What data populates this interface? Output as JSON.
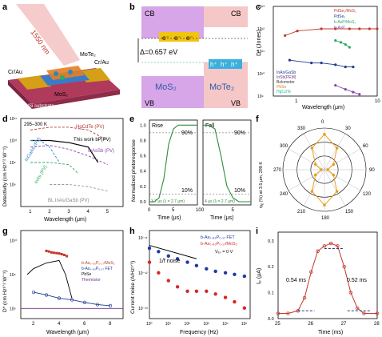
{
  "panels": {
    "a": {
      "label": "a",
      "laser_text": "1550 nm",
      "electrode_left": "Cr/Au",
      "electrode_right": "Cr/Au",
      "top_layer": "MoTe₂",
      "bottom_layer": "MoS₂",
      "substrate": "SiO₂/Si substrate"
    },
    "b": {
      "label": "b",
      "cb_left": "CB",
      "cb_right": "CB",
      "vb_left": "VB",
      "vb_right": "VB",
      "delta": "Δ=0.657 eV",
      "mos2": "MoS₂",
      "mote2": "MoTe₂",
      "electron_marks": [
        "e⁻",
        "e⁻",
        "e⁻"
      ],
      "hole_marks": [
        "h⁺",
        "h⁺",
        "h⁺"
      ]
    },
    "c": {
      "label": "c",
      "xlabel": "Wavelength (μm)",
      "ylabel": "D* (Jones)",
      "legend": [
        "PdSe₂/MoS₂",
        "InAs/GaSb",
        "InSb(PEM)",
        "Bolometer",
        "PbSe",
        "HgCdTe",
        "PdSe₂",
        "b-AsP/MoS₂",
        "b-AsP"
      ],
      "colors": {
        "pdse2_mos2": "#c0392b",
        "inas_gasb": "#1f3a93",
        "insb": "#6c3483",
        "bolometer": "#333333",
        "pbse": "#e67e22",
        "hgcdte": "#1abc9c",
        "pdse2": "#2e86c1",
        "basp_mos2": "#27ae60",
        "basp": "#8e44ad"
      }
    },
    "d": {
      "label": "d",
      "temp_range": "295–300 K",
      "xlabel": "Wavelength (μm)",
      "ylabel": "Detectivity (cm Hz¹ᐟ² W⁻¹)",
      "curve_labels": [
        "HgCdTe (PV)",
        "This work bP(PV)",
        "InAsSb (PV)",
        "InGaAs (PV)",
        "InAs (PV)",
        "BL InAs/GaSb (PV)"
      ],
      "colors": {
        "hgcdte": "#b03a2e",
        "bp": "#000000",
        "inassb": "#8e44ad",
        "ingaas": "#2e86c1",
        "inas": "#27ae60",
        "inas_gasb": "#999999"
      }
    },
    "e": {
      "label": "e",
      "ylabel": "Normalized photoresponse",
      "xlabel_left": "Time (μs)",
      "xlabel_right": "Time (μs)",
      "rise_label": "Rise",
      "fall_label": "Fall",
      "rise_time": "3.7 μs (λ = 2.7 μm)",
      "fall_time": "4 μs (λ = 2.7 μm)",
      "mark90": "90%",
      "mark10": "10%",
      "mark90b": "90%",
      "mark10b": "10%",
      "colors": {
        "curve": "#2e8b3a",
        "ref": "#8e44ad"
      }
    },
    "f": {
      "label": "f",
      "ylabel": "ηᵢᵨ (%) at 3.5 μm, 298 K",
      "angle_labels": [
        "0",
        "30",
        "60",
        "90",
        "120",
        "150",
        "180",
        "210",
        "240",
        "270",
        "300",
        "330"
      ],
      "color": "#e8a020"
    },
    "g": {
      "label": "g",
      "xlabel": "Wavelength (μm)",
      "ylabel": "D* (cm Hz¹ᐟ² W⁻¹)",
      "legend": [
        "b-As₀.₈₃P₀.₁₇/MoS₂",
        "b-As₀.₈₃P₀.₁₇ FET",
        "PbSe",
        "Thermistor"
      ],
      "colors": {
        "heterostructure": "#c0392b",
        "fet": "#1f3a93",
        "pbse": "#000000",
        "thermistor": "#6c3483"
      }
    },
    "h": {
      "label": "h",
      "xlabel": "Frequency (Hz)",
      "ylabel": "Current noise (A/Hz¹ᐟ²)",
      "legend": [
        "b-As₀.₈₃P₀.₁₇ FET",
        "b-As₀.₈₃P₀.₁₇/MoS₂"
      ],
      "vds": "Vₑₛ = 0 V",
      "noise_label": "1/f noise",
      "colors": {
        "fet": "#1f3aa3",
        "hetero": "#d62728"
      }
    },
    "i": {
      "label": "i",
      "xlabel": "Time (ms)",
      "ylabel": "Iₚ (μA)",
      "rise": "0.54 ms",
      "fall": "0.52 ms",
      "color": "#c0392b"
    }
  },
  "chart_data": [
    {
      "panel": "c",
      "type": "line",
      "xlabel": "Wavelength (μm)",
      "ylabel": "D* (Jones)",
      "x_scale": "log",
      "y_scale": "log",
      "xlim": [
        0.5,
        10
      ],
      "ylim": [
        1000000000,
        10000000000000
      ],
      "x_ticks": [
        1,
        10
      ],
      "y_tick_exponents": [
        9,
        10,
        11,
        12,
        13
      ],
      "series": [
        {
          "name": "PdSe₂/MoS₂",
          "color": "#c0392b",
          "x": [
            0.7,
            1,
            2,
            3,
            4.5,
            6,
            8,
            10
          ],
          "y": [
            500000000000.0,
            800000000000.0,
            1000000000000.0,
            1000000000000.0,
            1000000000000.0,
            1000000000000.0,
            1000000000000.0,
            1000000000000.0
          ]
        },
        {
          "name": "InAs/GaSb",
          "color": "#1f3a93",
          "x": [
            0.8,
            1.5,
            2,
            3,
            4,
            5
          ],
          "y": [
            40000000000.0,
            30000000000.0,
            30000000000.0,
            25000000000.0,
            20000000000.0,
            20000000000.0
          ]
        },
        {
          "name": "b-AsP/MoS₂",
          "color": "#27ae60",
          "x": [
            3,
            3.5,
            4,
            4.5
          ],
          "y": [
            300000000000.0,
            250000000000.0,
            200000000000.0,
            150000000000.0
          ]
        },
        {
          "name": "b-AsP",
          "color": "#8e44ad",
          "x": [
            3,
            4,
            5,
            6
          ],
          "y": [
            3000000000.0,
            2000000000.0,
            1500000000.0,
            1200000000.0
          ]
        }
      ]
    },
    {
      "panel": "d",
      "type": "line",
      "xlabel": "Wavelength (μm)",
      "ylabel": "Detectivity (cm Hz¹ᐟ² W⁻¹)",
      "x_ticks": [
        1,
        2,
        3,
        4,
        5
      ],
      "y_tick_exponents": [
        8,
        9,
        10,
        11
      ],
      "y_scale": "log",
      "series": [
        {
          "name": "HgCdTe (PV)",
          "color": "#b03a2e",
          "x": [
            1,
            2,
            3,
            4,
            5
          ],
          "y": [
            30000000000.0,
            40000000000.0,
            40000000000.0,
            30000000000.0,
            10000000000.0
          ]
        },
        {
          "name": "This work bP(PV)",
          "color": "#000000",
          "x": [
            1,
            2,
            3,
            4,
            4.5
          ],
          "y": [
            10000000000.0,
            10000000000.0,
            8000000000.0,
            5000000000.0,
            1000000000.0
          ]
        },
        {
          "name": "InAsSb (PV)",
          "color": "#8e44ad",
          "x": [
            1,
            2,
            3,
            4,
            5
          ],
          "y": [
            5000000000.0,
            6000000000.0,
            4000000000.0,
            2000000000.0,
            800000000.0
          ]
        },
        {
          "name": "InGaAs (PV)",
          "color": "#2e86c1",
          "x": [
            1,
            1.5,
            2,
            2.5
          ],
          "y": [
            10000000000.0,
            10000000000.0,
            5000000000.0,
            1000000000.0
          ]
        },
        {
          "name": "InAs (PV)",
          "color": "#27ae60",
          "x": [
            1,
            2,
            3,
            3.5
          ],
          "y": [
            1000000000.0,
            1000000000.0,
            800000000.0,
            300000000.0
          ]
        },
        {
          "name": "BL InAs/GaSb (PV)",
          "color": "#999999",
          "x": [
            2,
            3,
            4,
            5
          ],
          "y": [
            100000000.0,
            100000000.0,
            80000000.0,
            50000000.0
          ]
        }
      ]
    },
    {
      "panel": "e",
      "type": "line",
      "ylabel": "Normalized photoresponse",
      "xlabel": "Time (μs)",
      "y_ticks": [
        0,
        0.2,
        0.4,
        0.6,
        0.8,
        1.0
      ],
      "x_ticks_left": [
        0,
        5,
        10
      ],
      "x_ticks_right": [
        0,
        5
      ],
      "series": [
        {
          "name": "Rise",
          "x": [
            0,
            1,
            2,
            3,
            4,
            5,
            6,
            7,
            8,
            10
          ],
          "y": [
            0,
            0,
            0.05,
            0.3,
            0.75,
            0.95,
            1,
            1,
            1,
            1
          ]
        },
        {
          "name": "Fall",
          "x": [
            0,
            1,
            2,
            3,
            4,
            5,
            6,
            7,
            8
          ],
          "y": [
            1,
            1,
            0.95,
            0.6,
            0.2,
            0.05,
            0,
            0,
            0
          ]
        }
      ]
    },
    {
      "panel": "f",
      "type": "polar",
      "ylabel": "ηᵢᵨ (%) at 3.5 μm, 298 K",
      "angles": [
        0,
        30,
        60,
        90,
        120,
        150,
        180,
        210,
        240,
        270,
        300,
        330
      ],
      "values": [
        0.85,
        0.6,
        0.25,
        0.08,
        0.25,
        0.6,
        0.85,
        0.6,
        0.25,
        0.08,
        0.25,
        0.6
      ]
    },
    {
      "panel": "g",
      "type": "line",
      "xlabel": "Wavelength (μm)",
      "ylabel": "D* (cm Hz¹ᐟ² W⁻¹)",
      "y_scale": "log",
      "x_ticks": [
        2,
        4,
        6,
        8
      ],
      "y_tick_exponents": [
        8,
        9,
        10
      ],
      "series": [
        {
          "name": "b-As₀.₈₃P₀.₁₇/MoS₂",
          "color": "#c0392b",
          "x": [
            3,
            3.2,
            3.4,
            3.6,
            3.8,
            4,
            4.2,
            4.4,
            4.6
          ],
          "y": [
            5000000000.0,
            4800000000.0,
            4500000000.0,
            4400000000.0,
            4300000000.0,
            4200000000.0,
            4000000000.0,
            3800000000.0,
            3500000000.0
          ]
        },
        {
          "name": "b-As₀.₈₃P₀.₁₇ FET",
          "color": "#1f3a93",
          "x": [
            2,
            3,
            4,
            5,
            6,
            7,
            8
          ],
          "y": [
            300000000.0,
            250000000.0,
            200000000.0,
            180000000.0,
            150000000.0,
            130000000.0,
            120000000.0
          ]
        },
        {
          "name": "PbSe",
          "color": "#000000",
          "x": [
            1.5,
            2,
            3,
            4,
            4.5,
            5
          ],
          "y": [
            1000000000.0,
            1500000000.0,
            2200000000.0,
            2600000000.0,
            1000000000.0,
            200000000.0
          ]
        },
        {
          "name": "Thermistor",
          "color": "#6c3483",
          "x": [
            1,
            2,
            4,
            6,
            8,
            9
          ],
          "y": [
            100000000.0,
            100000000.0,
            100000000.0,
            100000000.0,
            100000000.0,
            100000000.0
          ]
        }
      ]
    },
    {
      "panel": "h",
      "type": "scatter",
      "xlabel": "Frequency (Hz)",
      "ylabel": "Current noise (A/Hz¹ᐟ²)",
      "x_scale": "log",
      "y_scale": "log",
      "x_tick_exponents": [
        0,
        1,
        2,
        3,
        4,
        5
      ],
      "y_tick_exponents": [
        -13,
        -12,
        -11
      ],
      "series": [
        {
          "name": "b-As₀.₈₃P₀.₁₇ FET",
          "color": "#1f3aa3",
          "x": [
            1,
            3,
            10,
            30,
            100,
            300,
            1000,
            3000,
            10000,
            30000,
            100000
          ],
          "y": [
            5e-12,
            4e-12,
            3e-12,
            2.5e-12,
            2e-12,
            1.6e-12,
            1.3e-12,
            1.1e-12,
            1e-12,
            9e-13,
            8e-13
          ]
        },
        {
          "name": "b-As₀.₈₃P₀.₁₇/MoS₂",
          "color": "#d62728",
          "x": [
            1,
            3,
            10,
            30,
            100,
            300,
            1000,
            3000,
            10000,
            30000,
            100000
          ],
          "y": [
            2e-12,
            1e-12,
            6e-13,
            4e-13,
            3e-13,
            3e-13,
            3e-13,
            2.5e-13,
            2e-13,
            1.5e-13,
            1e-13
          ]
        }
      ]
    },
    {
      "panel": "i",
      "type": "scatter",
      "xlabel": "Time (ms)",
      "ylabel": "Iₚ (μA)",
      "xlim": [
        25,
        28
      ],
      "ylim": [
        0,
        0.3
      ],
      "x_ticks": [
        25,
        26,
        27,
        28
      ],
      "y_ticks": [
        0,
        0.1,
        0.2,
        0.3
      ],
      "series": [
        {
          "name": "Ip",
          "x": [
            25,
            25.3,
            25.6,
            25.8,
            26,
            26.2,
            26.4,
            26.6,
            26.8,
            27,
            27.2,
            27.4,
            27.6,
            28
          ],
          "y": [
            0.02,
            0.02,
            0.03,
            0.08,
            0.18,
            0.26,
            0.28,
            0.29,
            0.28,
            0.2,
            0.1,
            0.04,
            0.02,
            0.02
          ]
        }
      ]
    }
  ]
}
